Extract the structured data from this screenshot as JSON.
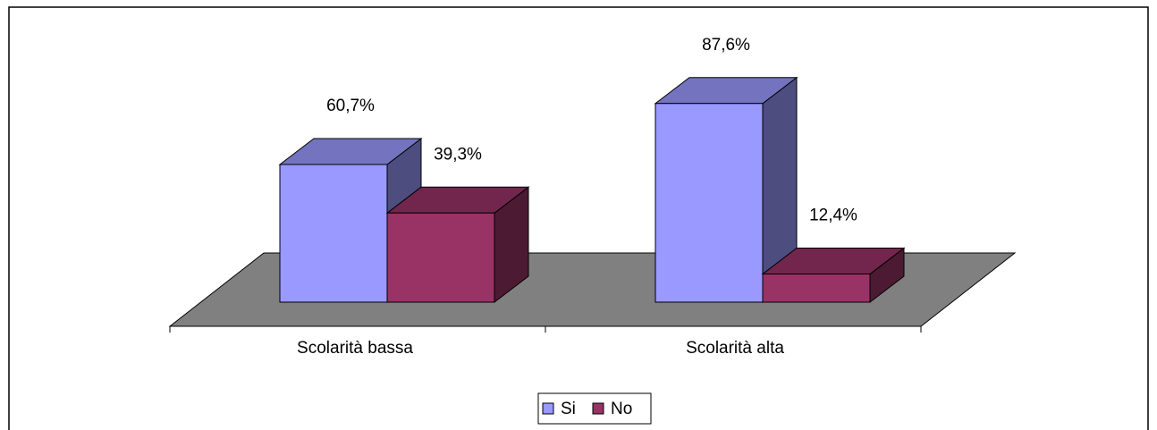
{
  "chart_data": {
    "type": "bar3d",
    "categories": [
      "Scolarità bassa",
      "Scolarità alta"
    ],
    "series": [
      {
        "name": "Si",
        "color": "#9999ff",
        "values": [
          60.7,
          87.6
        ],
        "value_labels": [
          "60,7%",
          "87,6%"
        ]
      },
      {
        "name": "No",
        "color": "#993366",
        "values": [
          39.3,
          12.4
        ],
        "value_labels": [
          "39,3%",
          "12,4%"
        ]
      }
    ],
    "legend": "bottom"
  }
}
